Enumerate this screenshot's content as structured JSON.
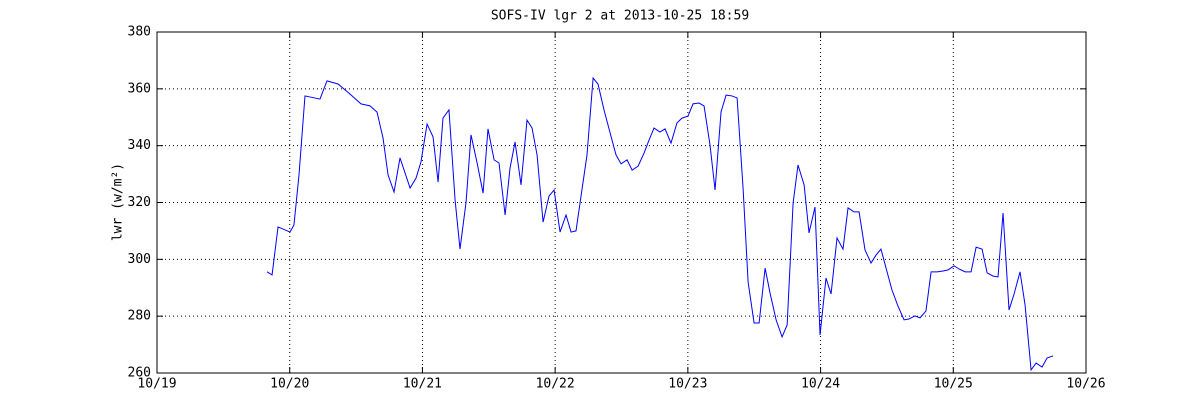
{
  "chart_data": {
    "type": "line",
    "title": "SOFS-IV lgr 2 at 2013-10-25 18:59",
    "ylabel": "lwr (w/m²)",
    "xlim": [
      0,
      7
    ],
    "xticks": [
      {
        "value": 0,
        "label": "10/19"
      },
      {
        "value": 1,
        "label": "10/20"
      },
      {
        "value": 2,
        "label": "10/21"
      },
      {
        "value": 3,
        "label": "10/22"
      },
      {
        "value": 4,
        "label": "10/23"
      },
      {
        "value": 5,
        "label": "10/24"
      },
      {
        "value": 6,
        "label": "10/25"
      },
      {
        "value": 7,
        "label": "10/26"
      }
    ],
    "ylim": [
      260,
      380
    ],
    "yticks": [
      260,
      280,
      300,
      320,
      340,
      360,
      380
    ],
    "grid": true,
    "x": [
      0.829,
      0.867,
      0.912,
      1.002,
      1.032,
      1.07,
      1.115,
      1.228,
      1.281,
      1.364,
      1.454,
      1.537,
      1.605,
      1.658,
      1.703,
      1.741,
      1.786,
      1.831,
      1.907,
      1.952,
      1.989,
      2.035,
      2.08,
      2.118,
      2.155,
      2.2,
      2.246,
      2.283,
      2.329,
      2.366,
      2.412,
      2.457,
      2.494,
      2.54,
      2.577,
      2.623,
      2.66,
      2.698,
      2.743,
      2.788,
      2.826,
      2.864,
      2.909,
      2.954,
      2.992,
      3.037,
      3.082,
      3.12,
      3.157,
      3.24,
      3.286,
      3.323,
      3.368,
      3.414,
      3.459,
      3.497,
      3.542,
      3.58,
      3.625,
      3.67,
      3.708,
      3.745,
      3.79,
      3.828,
      3.873,
      3.918,
      3.956,
      4.001,
      4.039,
      4.084,
      4.122,
      4.167,
      4.205,
      4.25,
      4.288,
      4.333,
      4.371,
      4.416,
      4.454,
      4.499,
      4.537,
      4.582,
      4.619,
      4.665,
      4.71,
      4.748,
      4.793,
      4.83,
      4.876,
      4.913,
      4.958,
      4.996,
      5.041,
      5.079,
      5.124,
      5.169,
      5.207,
      5.252,
      5.29,
      5.335,
      5.38,
      5.418,
      5.455,
      5.501,
      5.538,
      5.583,
      5.629,
      5.666,
      5.711,
      5.749,
      5.794,
      5.833,
      5.878,
      5.923,
      5.961,
      6.006,
      6.043,
      6.089,
      6.134,
      6.172,
      6.217,
      6.255,
      6.3,
      6.337,
      6.375,
      6.42,
      6.458,
      6.503,
      6.541,
      6.586,
      6.624,
      6.669,
      6.707,
      6.752
    ],
    "series": [
      {
        "color": "#0000ff",
        "values": [
          295.6,
          294.5,
          311.4,
          309.6,
          312.1,
          329.7,
          357.5,
          356.4,
          362.8,
          361.7,
          358.2,
          354.7,
          354.0,
          351.8,
          342.7,
          329.7,
          323.7,
          335.7,
          325.1,
          328.6,
          334.3,
          347.6,
          343.1,
          327.2,
          349.7,
          352.6,
          320.9,
          303.6,
          320.2,
          343.8,
          333.9,
          323.3,
          345.9,
          335.0,
          333.9,
          315.6,
          332.1,
          341.3,
          326.2,
          349.0,
          346.2,
          336.7,
          313.1,
          322.3,
          324.4,
          309.6,
          315.6,
          309.6,
          310.0,
          336.7,
          363.8,
          361.7,
          352.6,
          344.5,
          336.7,
          333.6,
          335.0,
          331.4,
          332.8,
          337.4,
          342.0,
          346.2,
          344.8,
          345.9,
          340.9,
          348.0,
          349.7,
          350.4,
          354.7,
          355.0,
          354.0,
          340.2,
          324.4,
          351.9,
          357.8,
          357.5,
          356.8,
          325.1,
          292.0,
          277.6,
          277.6,
          296.9,
          288.2,
          278.7,
          272.7,
          276.9,
          319.8,
          333.2,
          326.2,
          309.3,
          318.4,
          273.4,
          293.4,
          287.8,
          307.5,
          303.6,
          318.1,
          316.7,
          316.7,
          303.3,
          298.7,
          301.5,
          303.6,
          295.6,
          289.2,
          283.6,
          278.7,
          279.0,
          280.1,
          279.4,
          281.8,
          295.6,
          295.6,
          295.9,
          296.3,
          297.7,
          296.6,
          295.6,
          295.6,
          304.3,
          303.6,
          295.2,
          294.1,
          293.8,
          316.3,
          282.2,
          287.8,
          295.6,
          283.9,
          261.1,
          263.5,
          262.1,
          265.3,
          266.0
        ]
      }
    ]
  }
}
